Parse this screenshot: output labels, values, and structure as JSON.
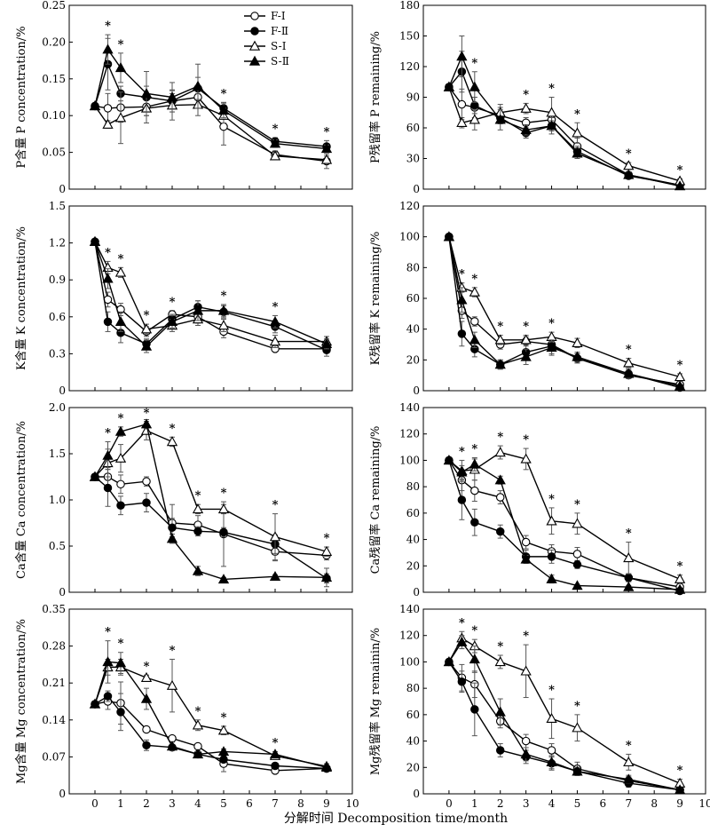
{
  "figure": {
    "xlabel": "分解时间 Decomposition time/month",
    "legend": [
      "F-Ⅰ",
      "F-Ⅱ",
      "S-Ⅰ",
      "S-Ⅱ"
    ],
    "x_ticks": [
      0,
      1,
      2,
      3,
      4,
      5,
      6,
      7,
      8,
      9,
      10
    ],
    "x_range": [
      -1,
      10
    ],
    "grid": false,
    "legend_position": "top-right of top-left panel"
  },
  "series_styles": {
    "F-Ⅰ": {
      "marker": "circle",
      "filled": false,
      "color": "#000000"
    },
    "F-Ⅱ": {
      "marker": "circle",
      "filled": true,
      "color": "#000000"
    },
    "S-Ⅰ": {
      "marker": "triangle",
      "filled": false,
      "color": "#000000"
    },
    "S-Ⅱ": {
      "marker": "triangle",
      "filled": true,
      "color": "#000000"
    }
  },
  "chart_data": [
    {
      "type": "line",
      "ylabel": "P含量 P concentration/%",
      "ylim": [
        0,
        0.25
      ],
      "yticks": [
        "0",
        "0.05",
        "0.10",
        "0.15",
        "0.20",
        "0.25"
      ],
      "x": [
        0,
        0.5,
        1,
        2,
        3,
        4,
        5,
        7,
        9
      ],
      "series": [
        {
          "name": "F-Ⅰ",
          "values": [
            0.113,
            0.11,
            0.111,
            0.112,
            0.12,
            0.125,
            0.085,
            0.047,
            0.038
          ],
          "errors": [
            0,
            0.02,
            0.02,
            0.012,
            0.01,
            0.015,
            0.025,
            0.005,
            0.01
          ]
        },
        {
          "name": "F-Ⅱ",
          "values": [
            0.113,
            0.17,
            0.13,
            0.125,
            0.12,
            0.137,
            0.11,
            0.065,
            0.058
          ],
          "errors": [
            0,
            0.035,
            0.01,
            0.015,
            0.015,
            0.015,
            0.008,
            0.005,
            0.008
          ]
        },
        {
          "name": "S-Ⅰ",
          "values": [
            0.113,
            0.088,
            0.097,
            0.11,
            0.114,
            0.115,
            0.1,
            0.045,
            0.04
          ],
          "errors": [
            0,
            0.005,
            0.035,
            0.02,
            0.02,
            0.015,
            0.01,
            0.005,
            0.005
          ]
        },
        {
          "name": "S-Ⅱ",
          "values": [
            0.113,
            0.19,
            0.165,
            0.13,
            0.125,
            0.14,
            0.107,
            0.062,
            0.055
          ],
          "errors": [
            0,
            0.02,
            0.02,
            0.03,
            0.02,
            0.03,
            0.01,
            0.005,
            0.005
          ]
        }
      ],
      "significance_x": [
        0.5,
        1,
        5,
        7,
        9
      ]
    },
    {
      "type": "line",
      "ylabel": "P残留率 P remaining/%",
      "ylim": [
        0,
        180
      ],
      "yticks": [
        "0",
        "30",
        "60",
        "90",
        "120",
        "150",
        "180"
      ],
      "x": [
        0,
        0.5,
        1,
        2,
        3,
        4,
        5,
        7,
        9
      ],
      "series": [
        {
          "name": "F-Ⅰ",
          "values": [
            100,
            83,
            80,
            72,
            65,
            68,
            42,
            14,
            4
          ],
          "errors": [
            0,
            15,
            10,
            8,
            5,
            5,
            8,
            3,
            2
          ]
        },
        {
          "name": "F-Ⅱ",
          "values": [
            100,
            115,
            82,
            70,
            55,
            62,
            37,
            13,
            4
          ],
          "errors": [
            0,
            20,
            8,
            5,
            5,
            5,
            5,
            3,
            1
          ]
        },
        {
          "name": "S-Ⅰ",
          "values": [
            100,
            65,
            68,
            75,
            79,
            75,
            55,
            23,
            8
          ],
          "errors": [
            0,
            5,
            10,
            8,
            5,
            15,
            10,
            3,
            2
          ]
        },
        {
          "name": "S-Ⅱ",
          "values": [
            100,
            130,
            100,
            68,
            58,
            62,
            35,
            14,
            3
          ],
          "errors": [
            0,
            20,
            15,
            10,
            5,
            8,
            5,
            3,
            1
          ]
        }
      ],
      "significance_x": [
        1,
        3,
        4,
        5,
        7,
        9
      ]
    },
    {
      "type": "line",
      "ylabel": "K含量 K concentration/%",
      "ylim": [
        0,
        1.5
      ],
      "yticks": [
        "0",
        "0.3",
        "0.6",
        "0.9",
        "1.2",
        "1.5"
      ],
      "x": [
        0,
        0.5,
        1,
        2,
        3,
        4,
        5,
        7,
        9
      ],
      "series": [
        {
          "name": "F-Ⅰ",
          "values": [
            1.21,
            0.74,
            0.66,
            0.48,
            0.62,
            0.6,
            0.48,
            0.34,
            0.34
          ],
          "errors": [
            0,
            0.06,
            0.05,
            0.04,
            0.03,
            0.05,
            0.05,
            0.02,
            0.02
          ]
        },
        {
          "name": "F-Ⅱ",
          "values": [
            1.21,
            0.56,
            0.47,
            0.38,
            0.58,
            0.68,
            0.64,
            0.52,
            0.33
          ],
          "errors": [
            0,
            0.08,
            0.08,
            0.04,
            0.04,
            0.05,
            0.05,
            0.05,
            0.05
          ]
        },
        {
          "name": "S-Ⅰ",
          "values": [
            1.21,
            1.0,
            0.96,
            0.5,
            0.53,
            0.58,
            0.53,
            0.4,
            0.4
          ],
          "errors": [
            0,
            0.05,
            0.04,
            0.04,
            0.05,
            0.05,
            0.05,
            0.05,
            0.04
          ]
        },
        {
          "name": "S-Ⅱ",
          "values": [
            1.21,
            0.91,
            0.56,
            0.36,
            0.56,
            0.65,
            0.65,
            0.56,
            0.38
          ],
          "errors": [
            0,
            0.08,
            0.08,
            0.05,
            0.05,
            0.08,
            0.05,
            0.05,
            0.04
          ]
        }
      ],
      "significance_x": [
        0.5,
        1,
        2,
        3,
        5,
        7
      ]
    },
    {
      "type": "line",
      "ylabel": "K残留率 K remaining/%",
      "ylim": [
        0,
        120
      ],
      "yticks": [
        "0",
        "20",
        "40",
        "60",
        "80",
        "100",
        "120"
      ],
      "x": [
        0,
        0.5,
        1,
        2,
        3,
        4,
        5,
        7,
        9
      ],
      "series": [
        {
          "name": "F-Ⅰ",
          "values": [
            100,
            52,
            45,
            30,
            32,
            30,
            21,
            10,
            4
          ],
          "errors": [
            0,
            5,
            3,
            3,
            3,
            3,
            3,
            2,
            1
          ]
        },
        {
          "name": "F-Ⅱ",
          "values": [
            100,
            37,
            27,
            17,
            25,
            29,
            21,
            11,
            2
          ],
          "errors": [
            0,
            8,
            5,
            3,
            5,
            5,
            3,
            3,
            1
          ]
        },
        {
          "name": "S-Ⅰ",
          "values": [
            100,
            67,
            64,
            33,
            33,
            35,
            31,
            18,
            9
          ],
          "errors": [
            0,
            3,
            3,
            3,
            3,
            3,
            3,
            3,
            2
          ]
        },
        {
          "name": "S-Ⅱ",
          "values": [
            100,
            59,
            33,
            17,
            22,
            28,
            22,
            11,
            3
          ],
          "errors": [
            0,
            8,
            5,
            3,
            5,
            5,
            3,
            3,
            1
          ]
        }
      ],
      "significance_x": [
        0.5,
        1,
        2,
        3,
        4,
        7,
        9
      ]
    },
    {
      "type": "line",
      "ylabel": "Ca含量 Ca concentration/%",
      "ylim": [
        0,
        2.0
      ],
      "yticks": [
        "0",
        "0.5",
        "1.0",
        "1.5",
        "2.0"
      ],
      "x": [
        0,
        0.5,
        1,
        2,
        3,
        4,
        5,
        7,
        9
      ],
      "series": [
        {
          "name": "F-Ⅰ",
          "values": [
            1.25,
            1.25,
            1.17,
            1.2,
            0.75,
            0.73,
            0.63,
            0.44,
            0.4
          ],
          "errors": [
            0,
            0.1,
            0.1,
            0.05,
            0.2,
            0.1,
            0.35,
            0.1,
            0.05
          ]
        },
        {
          "name": "F-Ⅱ",
          "values": [
            1.25,
            1.13,
            0.94,
            0.97,
            0.7,
            0.66,
            0.65,
            0.52,
            0.15
          ],
          "errors": [
            0,
            0.2,
            0.1,
            0.1,
            0.1,
            0.05,
            0.05,
            0.1,
            0.05
          ]
        },
        {
          "name": "S-Ⅰ",
          "values": [
            1.25,
            1.4,
            1.45,
            1.75,
            1.63,
            0.9,
            0.9,
            0.6,
            0.44
          ],
          "errors": [
            0,
            0.15,
            0.15,
            0.1,
            0.05,
            0.05,
            0.05,
            0.25,
            0.05
          ]
        },
        {
          "name": "S-Ⅱ",
          "values": [
            1.25,
            1.48,
            1.74,
            1.82,
            0.58,
            0.23,
            0.14,
            0.17,
            0.16
          ],
          "errors": [
            0,
            0.15,
            0.05,
            0.05,
            0.05,
            0.05,
            0.02,
            0.02,
            0.1
          ]
        }
      ],
      "significance_x": [
        0.5,
        1,
        2,
        3,
        4,
        5,
        7,
        9
      ]
    },
    {
      "type": "line",
      "ylabel": "Ca残留率 Ca remaining/%",
      "ylim": [
        0,
        140
      ],
      "yticks": [
        "0",
        "20",
        "40",
        "60",
        "80",
        "100",
        "120",
        "140"
      ],
      "x": [
        0,
        0.5,
        1,
        2,
        3,
        4,
        5,
        7,
        9
      ],
      "series": [
        {
          "name": "F-Ⅰ",
          "values": [
            100,
            85,
            77,
            72,
            38,
            31,
            29,
            11,
            4
          ],
          "errors": [
            0,
            8,
            8,
            5,
            5,
            5,
            5,
            3,
            1
          ]
        },
        {
          "name": "F-Ⅱ",
          "values": [
            100,
            70,
            53,
            46,
            27,
            27,
            21,
            11,
            1
          ],
          "errors": [
            0,
            15,
            10,
            5,
            5,
            5,
            3,
            3,
            1
          ]
        },
        {
          "name": "S-Ⅰ",
          "values": [
            100,
            92,
            93,
            106,
            101,
            54,
            52,
            26,
            10
          ],
          "errors": [
            0,
            8,
            8,
            5,
            8,
            10,
            8,
            12,
            3
          ]
        },
        {
          "name": "S-Ⅱ",
          "values": [
            100,
            91,
            97,
            85,
            25,
            10,
            5,
            4,
            2
          ],
          "errors": [
            0,
            5,
            5,
            3,
            3,
            3,
            1,
            1,
            1
          ]
        }
      ],
      "significance_x": [
        0.5,
        1,
        2,
        3,
        4,
        5,
        7,
        9
      ]
    },
    {
      "type": "line",
      "ylabel": "Mg含量 Mg concentration/%",
      "ylim": [
        0,
        0.35
      ],
      "yticks": [
        "0",
        "0.07",
        "0.14",
        "0.21",
        "0.28",
        "0.35"
      ],
      "x": [
        0,
        0.5,
        1,
        2,
        3,
        4,
        5,
        7,
        9
      ],
      "series": [
        {
          "name": "F-Ⅰ",
          "values": [
            0.17,
            0.175,
            0.172,
            0.122,
            0.105,
            0.09,
            0.057,
            0.044,
            0.048
          ],
          "errors": [
            0,
            0.015,
            0.04,
            0.005,
            0.005,
            0.005,
            0.015,
            0.005,
            0.005
          ]
        },
        {
          "name": "F-Ⅱ",
          "values": [
            0.17,
            0.185,
            0.155,
            0.092,
            0.088,
            0.075,
            0.065,
            0.053,
            0.048
          ],
          "errors": [
            0,
            0.01,
            0.035,
            0.01,
            0.005,
            0.005,
            0.005,
            0.005,
            0.005
          ]
        },
        {
          "name": "S-Ⅰ",
          "values": [
            0.17,
            0.24,
            0.24,
            0.22,
            0.205,
            0.13,
            0.12,
            0.072,
            0.052
          ],
          "errors": [
            0,
            0.015,
            0.015,
            0.005,
            0.05,
            0.01,
            0.008,
            0.005,
            0.005
          ]
        },
        {
          "name": "S-Ⅱ",
          "values": [
            0.17,
            0.25,
            0.248,
            0.18,
            0.09,
            0.075,
            0.08,
            0.075,
            0.05
          ],
          "errors": [
            0,
            0.04,
            0.02,
            0.02,
            0.008,
            0.005,
            0.005,
            0.005,
            0.005
          ]
        }
      ],
      "significance_x": [
        0.5,
        1,
        2,
        3,
        4,
        5,
        7
      ]
    },
    {
      "type": "line",
      "ylabel": "Mg残留率 Mg remainin/%",
      "ylim": [
        0,
        140
      ],
      "yticks": [
        "0",
        "20",
        "40",
        "60",
        "80",
        "100",
        "120",
        "140"
      ],
      "x": [
        0,
        0.5,
        1,
        2,
        3,
        4,
        5,
        7,
        9
      ],
      "series": [
        {
          "name": "F-Ⅰ",
          "values": [
            100,
            88,
            83,
            55,
            40,
            33,
            19,
            10,
            3
          ],
          "errors": [
            0,
            10,
            10,
            5,
            5,
            5,
            5,
            3,
            1
          ]
        },
        {
          "name": "F-Ⅱ",
          "values": [
            100,
            85,
            64,
            33,
            28,
            23,
            17,
            8,
            3
          ],
          "errors": [
            0,
            8,
            20,
            5,
            5,
            5,
            3,
            3,
            1
          ]
        },
        {
          "name": "S-Ⅰ",
          "values": [
            100,
            118,
            112,
            100,
            93,
            57,
            50,
            24,
            8
          ],
          "errors": [
            0,
            5,
            5,
            5,
            20,
            15,
            10,
            6,
            3
          ]
        },
        {
          "name": "S-Ⅱ",
          "values": [
            100,
            115,
            102,
            62,
            30,
            24,
            17,
            11,
            3
          ],
          "errors": [
            0,
            5,
            10,
            10,
            5,
            5,
            3,
            3,
            1
          ]
        }
      ],
      "significance_x": [
        0.5,
        1,
        2,
        3,
        4,
        5,
        7,
        9
      ]
    }
  ]
}
